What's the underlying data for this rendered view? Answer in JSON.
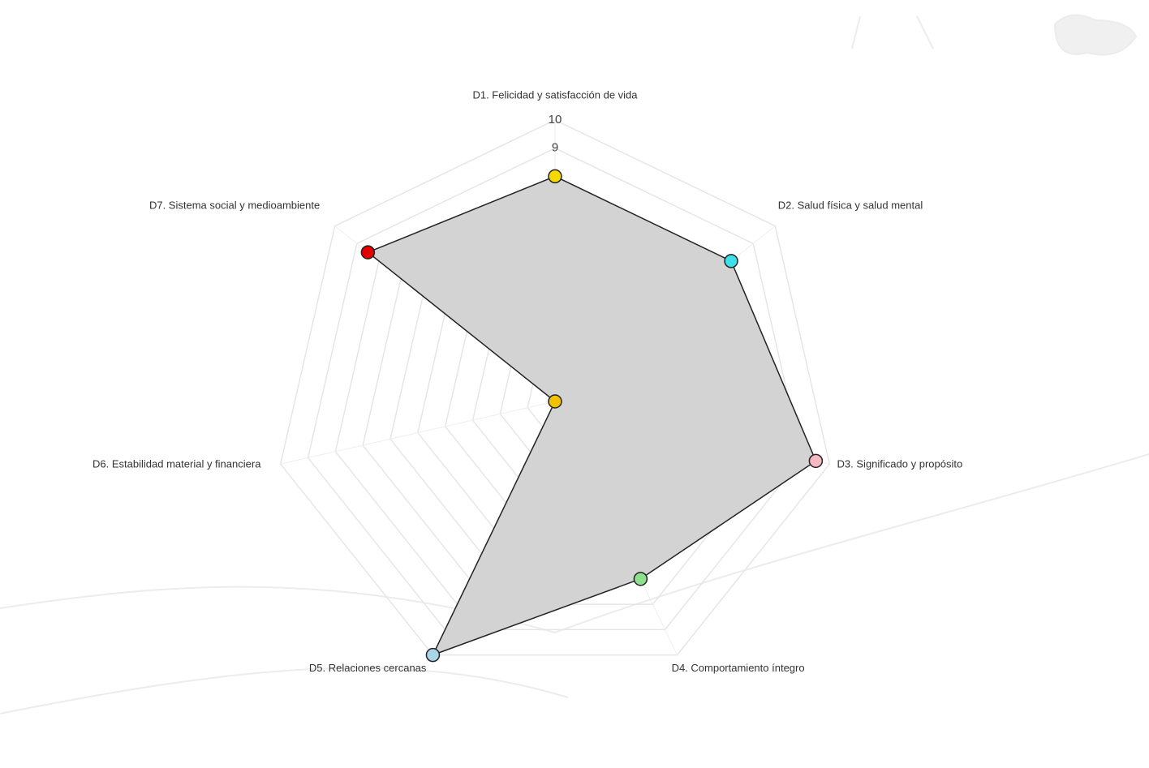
{
  "chart_data": {
    "type": "radar",
    "categories": [
      "D1. Felicidad y satisfacción de vida",
      "D2. Salud física y salud mental",
      "D3. Significado y propósito",
      "D4. Comportamiento íntegro",
      "D5. Relaciones cercanas",
      "D6. Estabilidad material y financiera",
      "D7. Sistema social y medioambiente"
    ],
    "values": [
      8,
      8,
      9.5,
      7,
      10,
      0,
      8.5
    ],
    "point_colors": [
      "#f5d800",
      "#3ddfe8",
      "#f6b9c2",
      "#8fe08c",
      "#a9d6e6",
      "#f2c200",
      "#e30000"
    ],
    "fill": "#d3d3d3",
    "line_color": "#222222",
    "rlim": [
      0,
      10
    ],
    "rticks": [
      1,
      2,
      3,
      4,
      5,
      6,
      7,
      8,
      9,
      10
    ],
    "grid": true
  }
}
